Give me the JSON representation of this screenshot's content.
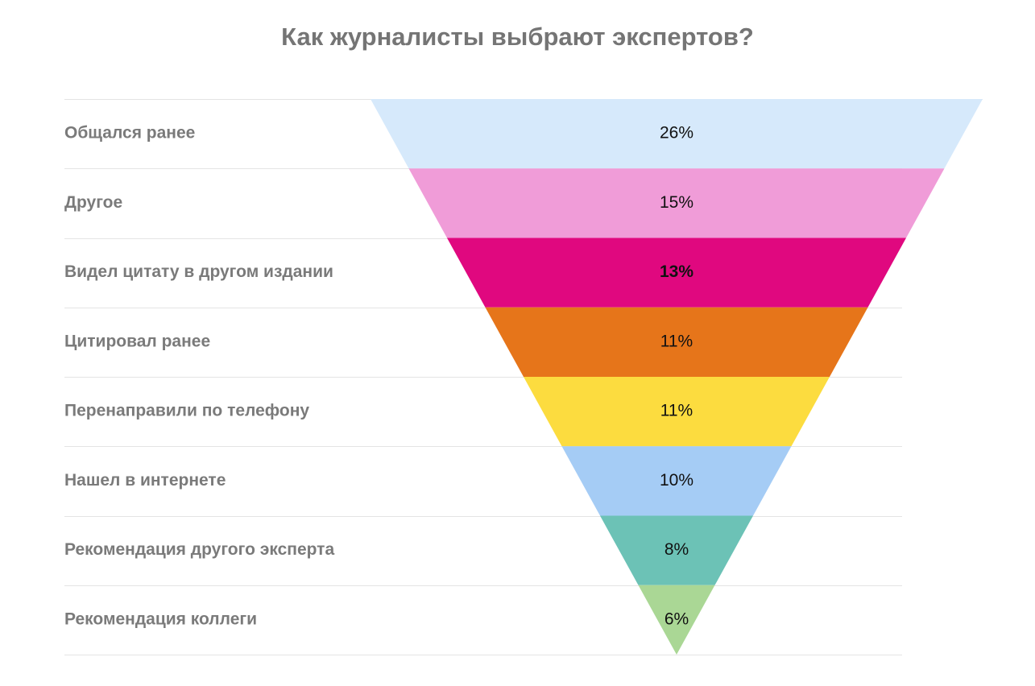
{
  "chart_data": {
    "type": "funnel",
    "title": "Как журналисты выбрают экспертов?",
    "categories": [
      "Общался ранее",
      "Другое",
      "Видел цитату в другом издании",
      "Цитировал ранее",
      "Перенаправили по телефону",
      "Нашел в интернете",
      "Рекомендация другого эксперта",
      "Рекомендация коллеги"
    ],
    "values": [
      26,
      15,
      13,
      11,
      11,
      10,
      8,
      6
    ],
    "value_labels": [
      "26%",
      "15%",
      "13%",
      "11%",
      "11%",
      "10%",
      "8%",
      "6%"
    ],
    "colors": [
      "#d6e9fb",
      "#f09cd8",
      "#e0087f",
      "#e6751a",
      "#fcdc3f",
      "#a5ccf5",
      "#6cc2b6",
      "#aad795"
    ],
    "label_colors": [
      "#111111",
      "#111111",
      "#ffffff",
      "#111111",
      "#111111",
      "#111111",
      "#111111",
      "#111111"
    ],
    "grid": true
  }
}
